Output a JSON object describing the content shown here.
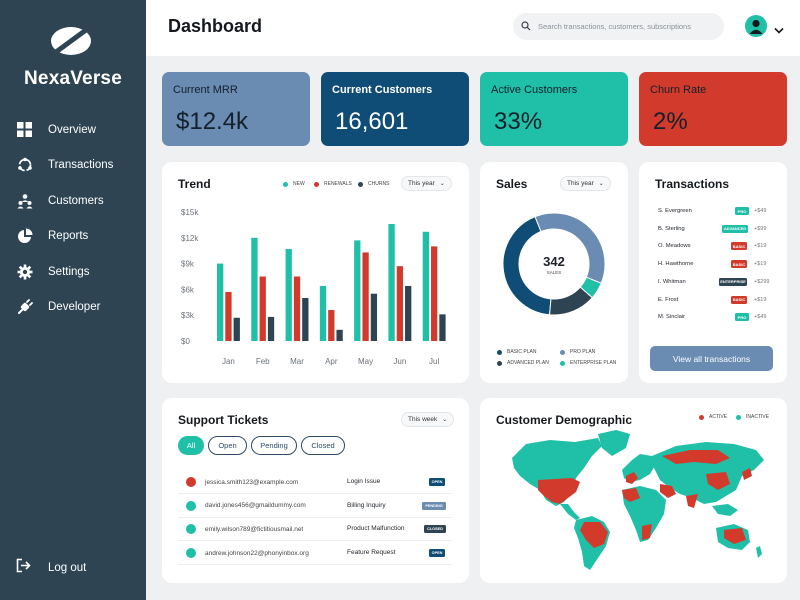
{
  "brand": {
    "name": "NexaVerse",
    "icon": "logo-leaf-icon"
  },
  "sidebar": {
    "items": [
      {
        "label": "Overview",
        "icon": "grid-icon"
      },
      {
        "label": "Transactions",
        "icon": "refresh-cycle-icon"
      },
      {
        "label": "Customers",
        "icon": "users-icon"
      },
      {
        "label": "Reports",
        "icon": "pie-chart-icon"
      },
      {
        "label": "Settings",
        "icon": "gear-icon"
      },
      {
        "label": "Developer",
        "icon": "plug-icon"
      }
    ],
    "logout": {
      "label": "Log out",
      "icon": "logout-icon"
    }
  },
  "header": {
    "title": "Dashboard",
    "search_placeholder": "Search transactions, customers, subscriptions",
    "avatar_icon": "user-avatar-icon"
  },
  "kpis": [
    {
      "label": "Current MRR",
      "value": "$12.4k",
      "bg": "#6a8bb2",
      "fg": "#13202c"
    },
    {
      "label": "Current Customers",
      "value": "16,601",
      "bg": "#0f4c76",
      "fg": "#ffffff"
    },
    {
      "label": "Active Customers",
      "value": "33%",
      "bg": "#1fbfa8",
      "fg": "#13202c"
    },
    {
      "label": "Churn Rate",
      "value": "2%",
      "bg": "#d23b2b",
      "fg": "#13202c"
    }
  ],
  "trend": {
    "title": "Trend",
    "dropdown": "This year",
    "legend": [
      {
        "label": "NEW",
        "color": "#1fbfa8"
      },
      {
        "label": "RENEWALS",
        "color": "#d23b2b"
      },
      {
        "label": "CHURNS",
        "color": "#2e4453"
      }
    ]
  },
  "chart_data": {
    "type": "bar",
    "categories": [
      "Jan",
      "Feb",
      "Mar",
      "Apr",
      "May",
      "Jun",
      "Jul"
    ],
    "series": [
      {
        "name": "NEW",
        "color": "#1fbfa8",
        "values": [
          9000,
          12000,
          10700,
          6400,
          11700,
          13600,
          12700
        ]
      },
      {
        "name": "RENEWALS",
        "color": "#d23b2b",
        "values": [
          5700,
          7500,
          7500,
          3600,
          10300,
          8700,
          11000
        ]
      },
      {
        "name": "CHURNS",
        "color": "#2e4453",
        "values": [
          2700,
          2800,
          5000,
          1300,
          5500,
          6400,
          3100
        ]
      }
    ],
    "yticks": [
      "$0",
      "$3k",
      "$6k",
      "$9k",
      "$12k",
      "$15k"
    ],
    "ylim": [
      0,
      15000
    ],
    "grid": false,
    "legend": "top-right"
  },
  "sales": {
    "title": "Sales",
    "dropdown": "This year",
    "center_value": "342",
    "center_label": "SALES",
    "donut": [
      {
        "name": "BASIC PLAN",
        "value": 40,
        "color": "#0f4c76"
      },
      {
        "name": "PRO PLAN",
        "value": 35,
        "color": "#6a8bb2"
      },
      {
        "name": "ENTERPRISE PLAN",
        "value": 5,
        "color": "#1fbfa8"
      },
      {
        "name": "ADVANCED PLAN",
        "value": 14,
        "color": "#2e4453"
      }
    ],
    "legend": [
      {
        "label": "BASIC PLAN",
        "color": "#0f4c76"
      },
      {
        "label": "PRO PLAN",
        "color": "#6a8bb2"
      },
      {
        "label": "ADVANCED PLAN",
        "color": "#2e4453"
      },
      {
        "label": "ENTERPRISE PLAN",
        "color": "#1fbfa8"
      }
    ]
  },
  "transactions": {
    "title": "Transactions",
    "rows": [
      {
        "name": "S. Evergreen",
        "plan": "PRO",
        "plan_color": "#1fbfa8",
        "amount": "+$49"
      },
      {
        "name": "B. Sterling",
        "plan": "ADVANCED",
        "plan_color": "#1fbfa8",
        "amount": "+$99"
      },
      {
        "name": "O. Meadows",
        "plan": "BASIC",
        "plan_color": "#d23b2b",
        "amount": "+$19"
      },
      {
        "name": "H. Hawthorne",
        "plan": "BASIC",
        "plan_color": "#d23b2b",
        "amount": "+$19"
      },
      {
        "name": "I. Whitman",
        "plan": "ENTERPRISE",
        "plan_color": "#2e4453",
        "amount": "+$299"
      },
      {
        "name": "E. Frost",
        "plan": "BASIC",
        "plan_color": "#d23b2b",
        "amount": "+$19"
      },
      {
        "name": "M. Sinclair",
        "plan": "PRO",
        "plan_color": "#1fbfa8",
        "amount": "+$49"
      }
    ],
    "button": "View all transactions"
  },
  "tickets": {
    "title": "Support Tickets",
    "dropdown": "This week",
    "filters": [
      "All",
      "Open",
      "Pending",
      "Closed"
    ],
    "active_filter": "All",
    "rows": [
      {
        "email": "jessica.smith123@example.com",
        "issue": "Login Issue",
        "status": "OPEN",
        "dot": "#d23b2b",
        "status_color": "#0f4c76"
      },
      {
        "email": "david.jones456@gmaildummy.com",
        "issue": "Billing Inquiry",
        "status": "PENDING",
        "dot": "#1fbfa8",
        "status_color": "#6a8bb2"
      },
      {
        "email": "emily.wilson789@fictitiousmail.net",
        "issue": "Product Malfunction",
        "status": "CLOSED",
        "dot": "#1fbfa8",
        "status_color": "#2e4453"
      },
      {
        "email": "andrew.johnson22@phonyinbox.org",
        "issue": "Feature Request",
        "status": "OPEN",
        "dot": "#1fbfa8",
        "status_color": "#0f4c76"
      }
    ]
  },
  "demographic": {
    "title": "Customer Demographic",
    "legend": [
      {
        "label": "ACTIVE",
        "color": "#d23b2b"
      },
      {
        "label": "INACTIVE",
        "color": "#1fbfa8"
      }
    ]
  }
}
